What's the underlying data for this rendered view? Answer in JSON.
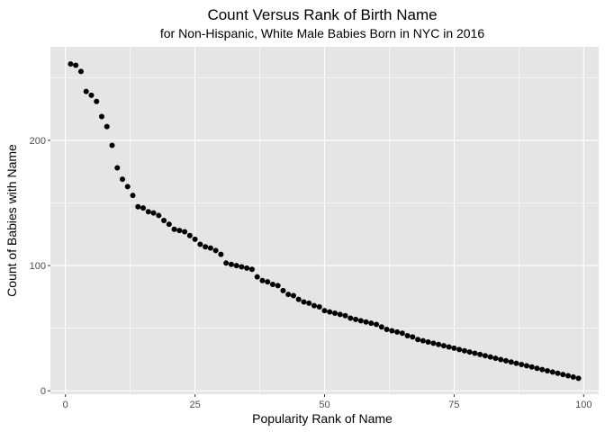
{
  "chart_data": {
    "type": "scatter",
    "title": "Count Versus Rank of Birth Name",
    "subtitle": "for Non-Hispanic, White Male Babies Born in NYC in 2016",
    "xlabel": "Popularity Rank of Name",
    "ylabel": "Count of Babies with Name",
    "xlim": [
      -2.9,
      102.9
    ],
    "ylim": [
      -2.7,
      274.7
    ],
    "x_ticks": [
      0,
      25,
      50,
      75,
      100
    ],
    "y_ticks": [
      0,
      100,
      200
    ],
    "x_tick_labels": [
      "0",
      "25",
      "50",
      "75",
      "100"
    ],
    "y_tick_labels": [
      "0",
      "100",
      "200"
    ],
    "grid": true,
    "legend": "none",
    "colors": {
      "panel": "#e5e5e5",
      "grid": "#ffffff",
      "point": "#000000",
      "tick_label": "#4d4d4d"
    },
    "x": [
      1,
      2,
      3,
      4,
      5,
      6,
      7,
      8,
      9,
      10,
      11,
      12,
      13,
      14,
      15,
      16,
      17,
      18,
      19,
      20,
      21,
      22,
      23,
      24,
      25,
      26,
      27,
      28,
      29,
      30,
      31,
      32,
      33,
      34,
      35,
      36,
      37,
      38,
      39,
      40,
      41,
      42,
      43,
      44,
      45,
      46,
      47,
      48,
      49,
      50,
      51,
      52,
      53,
      54,
      55,
      56,
      57,
      58,
      59,
      60,
      61,
      62,
      63,
      64,
      65,
      66,
      67,
      68,
      69,
      70,
      71,
      72,
      73,
      74,
      75,
      76,
      77,
      78,
      79,
      80,
      81,
      82,
      83,
      84,
      85,
      86,
      87,
      88,
      89,
      90,
      91,
      92,
      93,
      94,
      95,
      96,
      97,
      98,
      99
    ],
    "y": [
      261,
      260,
      255,
      239,
      236,
      231,
      219,
      211,
      196,
      178,
      169,
      163,
      156,
      147,
      146,
      143,
      142,
      140,
      136,
      133,
      129,
      128,
      127,
      124,
      121,
      117,
      115,
      114,
      112,
      109,
      102,
      101,
      100,
      99,
      98,
      97,
      91,
      88,
      87,
      85,
      84,
      80,
      77,
      76,
      73,
      71,
      70,
      68,
      67,
      64,
      63,
      62,
      61,
      60,
      58,
      57,
      56,
      55,
      54,
      53,
      51,
      49,
      48,
      47,
      46,
      44,
      43,
      41,
      40,
      39,
      38,
      37,
      36,
      35,
      34,
      33,
      32,
      31,
      30,
      29,
      28,
      27,
      26,
      25,
      24,
      23,
      22,
      21,
      20,
      19,
      18,
      17,
      16,
      15,
      14,
      13,
      12,
      11,
      10
    ]
  }
}
